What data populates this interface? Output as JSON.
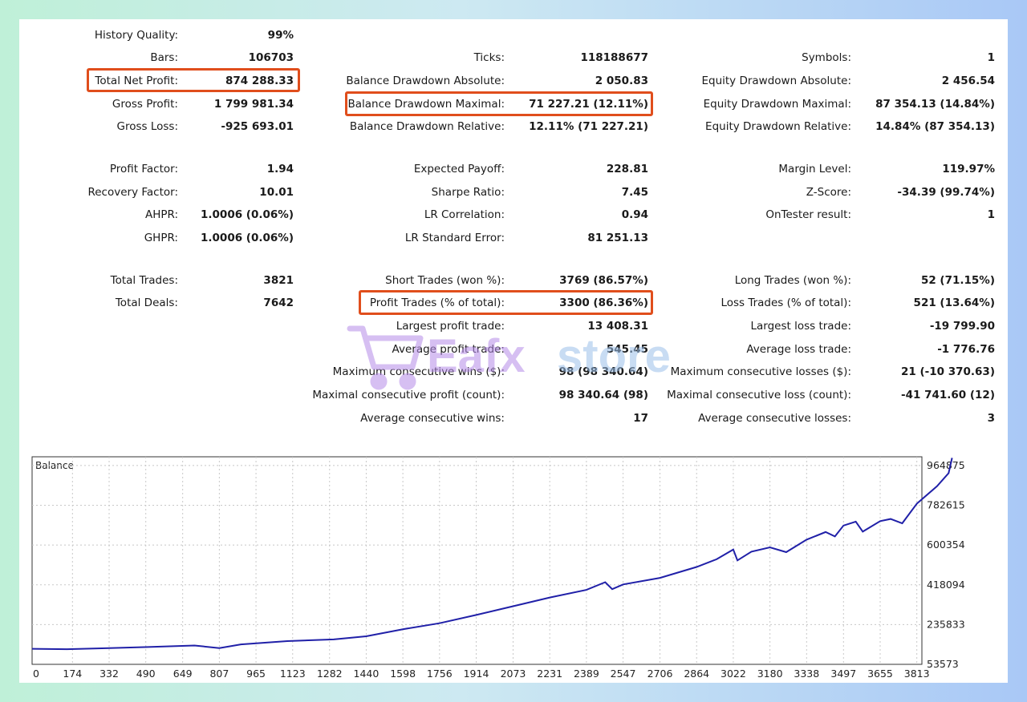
{
  "stats": {
    "history_quality": {
      "label": "History Quality:",
      "value": "99%"
    },
    "bars": {
      "label": "Bars:",
      "value": "106703"
    },
    "total_net_profit": {
      "label": "Total Net Profit:",
      "value": "874 288.33"
    },
    "gross_profit": {
      "label": "Gross Profit:",
      "value": "1 799 981.34"
    },
    "gross_loss": {
      "label": "Gross Loss:",
      "value": "-925 693.01"
    },
    "profit_factor": {
      "label": "Profit Factor:",
      "value": "1.94"
    },
    "recovery_factor": {
      "label": "Recovery Factor:",
      "value": "10.01"
    },
    "ahpr": {
      "label": "AHPR:",
      "value": "1.0006 (0.06%)"
    },
    "ghpr": {
      "label": "GHPR:",
      "value": "1.0006 (0.06%)"
    },
    "total_trades": {
      "label": "Total Trades:",
      "value": "3821"
    },
    "total_deals": {
      "label": "Total Deals:",
      "value": "7642"
    },
    "ticks": {
      "label": "Ticks:",
      "value": "118188677"
    },
    "balance_dd_absolute": {
      "label": "Balance Drawdown Absolute:",
      "value": "2 050.83"
    },
    "balance_dd_maximal": {
      "label": "Balance Drawdown Maximal:",
      "value": "71 227.21 (12.11%)"
    },
    "balance_dd_relative": {
      "label": "Balance Drawdown Relative:",
      "value": "12.11% (71 227.21)"
    },
    "expected_payoff": {
      "label": "Expected Payoff:",
      "value": "228.81"
    },
    "sharpe_ratio": {
      "label": "Sharpe Ratio:",
      "value": "7.45"
    },
    "lr_correlation": {
      "label": "LR Correlation:",
      "value": "0.94"
    },
    "lr_standard_error": {
      "label": "LR Standard Error:",
      "value": "81 251.13"
    },
    "short_trades": {
      "label": "Short Trades (won %):",
      "value": "3769 (86.57%)"
    },
    "profit_trades": {
      "label": "Profit Trades (% of total):",
      "value": "3300 (86.36%)"
    },
    "largest_profit_trade": {
      "label": "Largest profit trade:",
      "value": "13 408.31"
    },
    "average_profit_trade": {
      "label": "Average profit trade:",
      "value": "545.45"
    },
    "max_consecutive_wins": {
      "label": "Maximum consecutive wins ($):",
      "value": "98 (98 340.64)"
    },
    "maximal_consecutive_profit": {
      "label": "Maximal consecutive profit (count):",
      "value": "98 340.64 (98)"
    },
    "average_consecutive_wins": {
      "label": "Average consecutive wins:",
      "value": "17"
    },
    "symbols": {
      "label": "Symbols:",
      "value": "1"
    },
    "equity_dd_absolute": {
      "label": "Equity Drawdown Absolute:",
      "value": "2 456.54"
    },
    "equity_dd_maximal": {
      "label": "Equity Drawdown Maximal:",
      "value": "87 354.13 (14.84%)"
    },
    "equity_dd_relative": {
      "label": "Equity Drawdown Relative:",
      "value": "14.84% (87 354.13)"
    },
    "margin_level": {
      "label": "Margin Level:",
      "value": "119.97%"
    },
    "z_score": {
      "label": "Z-Score:",
      "value": "-34.39 (99.74%)"
    },
    "ontester_result": {
      "label": "OnTester result:",
      "value": "1"
    },
    "long_trades": {
      "label": "Long Trades (won %):",
      "value": "52 (71.15%)"
    },
    "loss_trades": {
      "label": "Loss Trades (% of total):",
      "value": "521 (13.64%)"
    },
    "largest_loss_trade": {
      "label": "Largest loss trade:",
      "value": "-19 799.90"
    },
    "average_loss_trade": {
      "label": "Average loss trade:",
      "value": "-1 776.76"
    },
    "max_consecutive_losses": {
      "label": "Maximum consecutive losses ($):",
      "value": "21 (-10 370.63)"
    },
    "maximal_consecutive_loss": {
      "label": "Maximal consecutive loss (count):",
      "value": "-41 741.60 (12)"
    },
    "average_consecutive_losses": {
      "label": "Average consecutive losses:",
      "value": "3"
    }
  },
  "highlight_color": "#e04e1c",
  "watermark": {
    "text_part1": "Eafx",
    "text_part2": "store",
    "color_part1": "#b58be8",
    "color_part2": "#9cc0ea"
  },
  "chart_data": {
    "type": "line",
    "title": "Balance",
    "line_color": "#2020a8",
    "grid": true,
    "x_ticks": [
      0,
      174,
      332,
      490,
      649,
      807,
      965,
      1123,
      1282,
      1440,
      1598,
      1756,
      1914,
      2073,
      2231,
      2389,
      2547,
      2706,
      2864,
      3022,
      3180,
      3338,
      3497,
      3655,
      3813
    ],
    "y_ticks": [
      53573,
      235833,
      418094,
      600354,
      782615,
      964875
    ],
    "xlim": [
      0,
      3821
    ],
    "ylim": [
      53573,
      1005000
    ],
    "series": [
      {
        "points": [
          [
            0,
            125000
          ],
          [
            150,
            123000
          ],
          [
            300,
            127000
          ],
          [
            500,
            133000
          ],
          [
            700,
            140000
          ],
          [
            807,
            128000
          ],
          [
            900,
            145000
          ],
          [
            1100,
            160000
          ],
          [
            1300,
            168000
          ],
          [
            1440,
            182000
          ],
          [
            1600,
            215000
          ],
          [
            1756,
            242000
          ],
          [
            1914,
            280000
          ],
          [
            2073,
            320000
          ],
          [
            2231,
            360000
          ],
          [
            2389,
            395000
          ],
          [
            2470,
            430000
          ],
          [
            2500,
            398000
          ],
          [
            2547,
            420000
          ],
          [
            2706,
            450000
          ],
          [
            2864,
            500000
          ],
          [
            2950,
            535000
          ],
          [
            3022,
            580000
          ],
          [
            3040,
            530000
          ],
          [
            3100,
            570000
          ],
          [
            3180,
            590000
          ],
          [
            3250,
            568000
          ],
          [
            3338,
            625000
          ],
          [
            3420,
            660000
          ],
          [
            3460,
            640000
          ],
          [
            3497,
            690000
          ],
          [
            3550,
            708000
          ],
          [
            3580,
            662000
          ],
          [
            3655,
            710000
          ],
          [
            3700,
            720000
          ],
          [
            3750,
            700000
          ],
          [
            3813,
            790000
          ],
          [
            3900,
            870000
          ],
          [
            3950,
            930000
          ],
          [
            3965,
            1000000
          ]
        ]
      }
    ]
  }
}
